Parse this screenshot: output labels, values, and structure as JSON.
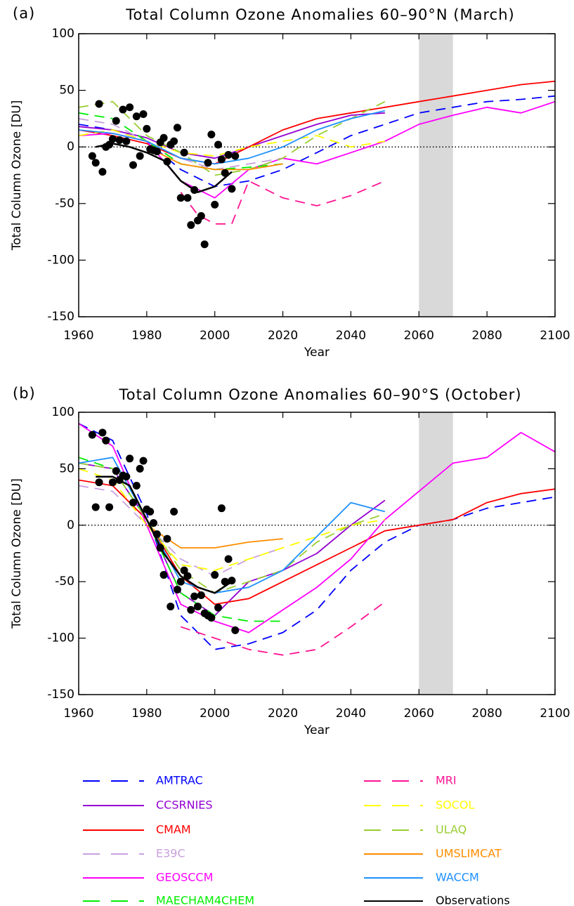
{
  "chart_data": [
    {
      "type": "line",
      "panel_label": "(a)",
      "title": "Total Column Ozone Anomalies 60–90°N (March)",
      "xlabel": "Year",
      "ylabel": "Total Column Ozone [DU]",
      "xlim": [
        1960,
        2100
      ],
      "ylim": [
        -150,
        100
      ],
      "xticks": [
        1960,
        1980,
        2000,
        2020,
        2040,
        2060,
        2080,
        2100
      ],
      "yticks": [
        -150,
        -100,
        -50,
        0,
        50,
        100
      ],
      "shade": [
        2060,
        2070
      ],
      "reference_line": 0,
      "series": [
        {
          "name": "AMTRAC",
          "x": [
            1960,
            1970,
            1980,
            1990,
            2000,
            2010,
            2020,
            2030,
            2040,
            2050,
            2060,
            2070,
            2080,
            2090,
            2100
          ],
          "values": [
            20,
            15,
            5,
            -20,
            -35,
            -30,
            -20,
            -5,
            10,
            20,
            30,
            35,
            40,
            42,
            45
          ]
        },
        {
          "name": "CCSRNIES",
          "x": [
            1960,
            1970,
            1980,
            1990,
            2000,
            2010,
            2020,
            2030,
            2040,
            2050
          ],
          "values": [
            18,
            15,
            8,
            -5,
            -10,
            0,
            10,
            20,
            28,
            30
          ]
        },
        {
          "name": "CMAM",
          "x": [
            1960,
            1970,
            1980,
            1990,
            2000,
            2010,
            2020,
            2030,
            2040,
            2050,
            2060,
            2070,
            2080,
            2090,
            2100
          ],
          "values": [
            15,
            10,
            3,
            -10,
            -15,
            0,
            15,
            25,
            30,
            35,
            40,
            45,
            50,
            55,
            58
          ]
        },
        {
          "name": "E39C",
          "x": [
            1960,
            1970,
            1980,
            1990,
            2000,
            2010,
            2020
          ],
          "values": [
            25,
            20,
            5,
            -10,
            -20,
            -15,
            -10
          ]
        },
        {
          "name": "GEOSCCM",
          "x": [
            1960,
            1970,
            1980,
            1990,
            2000,
            2010,
            2020,
            2030,
            2040,
            2050,
            2060,
            2070,
            2080,
            2090,
            2100
          ],
          "values": [
            10,
            12,
            5,
            -30,
            -45,
            -20,
            -10,
            -15,
            -5,
            5,
            20,
            28,
            35,
            30,
            40
          ]
        },
        {
          "name": "MAECHAM4CHEM",
          "x": [
            1960,
            1970,
            1980,
            1990,
            2000,
            2010,
            2020
          ],
          "values": [
            30,
            25,
            5,
            -15,
            -20,
            -18,
            -15
          ]
        },
        {
          "name": "MRI",
          "x": [
            1990,
            1995,
            2000,
            2005,
            2010,
            2020,
            2030,
            2040,
            2050
          ],
          "values": [
            -40,
            -60,
            -68,
            -68,
            -30,
            -45,
            -52,
            -43,
            -30
          ]
        },
        {
          "name": "SOCOL",
          "x": [
            1960,
            1970,
            1980,
            1990,
            2000,
            2010,
            2020,
            2030,
            2040,
            2050
          ],
          "values": [
            10,
            15,
            5,
            -5,
            -8,
            0,
            5,
            10,
            0,
            5
          ]
        },
        {
          "name": "ULAQ",
          "x": [
            1960,
            1970,
            1980,
            1990,
            2000,
            2010,
            2020,
            2030,
            2040,
            2050
          ],
          "values": [
            35,
            40,
            10,
            -5,
            -25,
            -20,
            -10,
            10,
            25,
            40
          ]
        },
        {
          "name": "UMSLIMCAT",
          "x": [
            1980,
            1990,
            2000,
            2010,
            2020
          ],
          "values": [
            0,
            -15,
            -20,
            -20,
            -15
          ]
        },
        {
          "name": "WACCM",
          "x": [
            1960,
            1970,
            1980,
            1990,
            2000,
            2010,
            2020,
            2030,
            2040,
            2050
          ],
          "values": [
            15,
            12,
            5,
            -10,
            -15,
            -10,
            0,
            15,
            25,
            32
          ]
        },
        {
          "name": "Observations",
          "x": [
            1965,
            1970,
            1975,
            1980,
            1985,
            1990,
            1995,
            2000,
            2005
          ],
          "values": [
            0,
            3,
            0,
            -5,
            -12,
            -30,
            -40,
            -35,
            -22
          ]
        }
      ],
      "observations": {
        "x": [
          1964,
          1965,
          1966,
          1967,
          1968,
          1969,
          1970,
          1971,
          1972,
          1973,
          1974,
          1975,
          1976,
          1977,
          1978,
          1979,
          1980,
          1981,
          1982,
          1983,
          1984,
          1985,
          1986,
          1987,
          1988,
          1989,
          1990,
          1991,
          1992,
          1993,
          1994,
          1995,
          1996,
          1997,
          1998,
          1999,
          2000,
          2001,
          2002,
          2003,
          2004,
          2005,
          2006
        ],
        "values": [
          -8,
          -14,
          38,
          -22,
          0,
          2,
          7,
          23,
          6,
          33,
          5,
          35,
          -16,
          27,
          -8,
          29,
          16,
          -2,
          -3,
          -4,
          4,
          8,
          -13,
          2,
          5,
          17,
          -45,
          -5,
          -45,
          -69,
          -38,
          -65,
          -61,
          -86,
          -14,
          11,
          -51,
          2,
          -11,
          -23,
          -7,
          -37,
          -8
        ]
      }
    },
    {
      "type": "line",
      "panel_label": "(b)",
      "title": "Total Column Ozone Anomalies 60–90°S (October)",
      "xlabel": "Year",
      "ylabel": "Total Column Ozone [DU]",
      "xlim": [
        1960,
        2100
      ],
      "ylim": [
        -150,
        100
      ],
      "xticks": [
        1960,
        1980,
        2000,
        2020,
        2040,
        2060,
        2080,
        2100
      ],
      "yticks": [
        -150,
        -100,
        -50,
        0,
        50,
        100
      ],
      "shade": [
        2060,
        2070
      ],
      "reference_line": 0,
      "series": [
        {
          "name": "AMTRAC",
          "x": [
            1960,
            1970,
            1980,
            1990,
            2000,
            2010,
            2020,
            2030,
            2040,
            2050,
            2060,
            2070,
            2080,
            2090,
            2100
          ],
          "values": [
            90,
            75,
            10,
            -80,
            -110,
            -105,
            -95,
            -75,
            -40,
            -15,
            0,
            5,
            15,
            20,
            25
          ]
        },
        {
          "name": "CCSRNIES",
          "x": [
            1960,
            1970,
            1980,
            1990,
            2000,
            2010,
            2020,
            2030,
            2040,
            2050
          ],
          "values": [
            55,
            50,
            5,
            -60,
            -80,
            -50,
            -40,
            -25,
            0,
            22
          ]
        },
        {
          "name": "CMAM",
          "x": [
            1960,
            1970,
            1980,
            1990,
            2000,
            2010,
            2020,
            2030,
            2040,
            2050,
            2060,
            2070,
            2080,
            2090,
            2100
          ],
          "values": [
            40,
            35,
            5,
            -45,
            -70,
            -65,
            -50,
            -35,
            -20,
            -5,
            0,
            5,
            20,
            28,
            32
          ]
        },
        {
          "name": "E39C",
          "x": [
            1960,
            1970,
            1980,
            1990,
            2000,
            2010,
            2020
          ],
          "values": [
            35,
            30,
            0,
            -30,
            -45,
            -30,
            -20
          ]
        },
        {
          "name": "GEOSCCM",
          "x": [
            1960,
            1970,
            1980,
            1990,
            2000,
            2010,
            2020,
            2030,
            2040,
            2050,
            2060,
            2070,
            2080,
            2090,
            2100
          ],
          "values": [
            90,
            70,
            0,
            -70,
            -85,
            -95,
            -75,
            -55,
            -30,
            5,
            30,
            55,
            60,
            82,
            65
          ]
        },
        {
          "name": "MAECHAM4CHEM",
          "x": [
            1960,
            1970,
            1980,
            1990,
            2000,
            2010,
            2020
          ],
          "values": [
            60,
            50,
            5,
            -60,
            -80,
            -85,
            -85
          ]
        },
        {
          "name": "MRI",
          "x": [
            1990,
            2000,
            2010,
            2020,
            2030,
            2040,
            2050
          ],
          "values": [
            -90,
            -100,
            -110,
            -115,
            -110,
            -90,
            -68
          ]
        },
        {
          "name": "SOCOL",
          "x": [
            1960,
            1970,
            1980,
            1990,
            2000,
            2010,
            2020,
            2030,
            2040,
            2050
          ],
          "values": [
            50,
            40,
            0,
            -35,
            -40,
            -30,
            -20,
            -10,
            0,
            5
          ]
        },
        {
          "name": "ULAQ",
          "x": [
            1960,
            1970,
            1980,
            1990,
            2000,
            2010,
            2020,
            2030,
            2040,
            2050
          ],
          "values": [
            55,
            50,
            5,
            -40,
            -60,
            -50,
            -40,
            -15,
            0,
            10
          ]
        },
        {
          "name": "UMSLIMCAT",
          "x": [
            1980,
            1990,
            2000,
            2010,
            2020
          ],
          "values": [
            0,
            -20,
            -20,
            -15,
            -12
          ]
        },
        {
          "name": "WACCM",
          "x": [
            1960,
            1970,
            1980,
            1990,
            2000,
            2010,
            2020,
            2030,
            2040,
            2050
          ],
          "values": [
            55,
            60,
            5,
            -50,
            -60,
            -55,
            -40,
            -10,
            20,
            12
          ]
        },
        {
          "name": "Observations",
          "x": [
            1965,
            1970,
            1975,
            1980,
            1985,
            1990,
            1995,
            2000,
            2005
          ],
          "values": [
            43,
            43,
            35,
            5,
            -25,
            -45,
            -55,
            -60,
            -50
          ]
        }
      ],
      "observations": {
        "x": [
          1964,
          1965,
          1966,
          1967,
          1968,
          1969,
          1970,
          1971,
          1972,
          1973,
          1974,
          1975,
          1976,
          1977,
          1978,
          1979,
          1980,
          1981,
          1982,
          1983,
          1984,
          1985,
          1986,
          1987,
          1988,
          1989,
          1990,
          1991,
          1992,
          1993,
          1994,
          1995,
          1996,
          1997,
          1998,
          1999,
          2000,
          2001,
          2002,
          2003,
          2004,
          2005,
          2006
        ],
        "values": [
          80,
          16,
          38,
          82,
          75,
          16,
          38,
          48,
          40,
          44,
          43,
          59,
          20,
          35,
          50,
          57,
          14,
          12,
          2,
          -8,
          -20,
          -44,
          -12,
          -72,
          12,
          -57,
          -50,
          -40,
          -45,
          -75,
          -63,
          -72,
          -62,
          -78,
          -80,
          -82,
          -44,
          -73,
          15,
          -50,
          -30,
          -49,
          -93
        ]
      }
    }
  ],
  "legend": {
    "entries": [
      {
        "name": "AMTRAC",
        "color": "#0000ff",
        "dashed": true
      },
      {
        "name": "CCSRNIES",
        "color": "#9400d3",
        "dashed": false
      },
      {
        "name": "CMAM",
        "color": "#ff0000",
        "dashed": false
      },
      {
        "name": "E39C",
        "color": "#c8a0dc",
        "dashed": true
      },
      {
        "name": "GEOSCCM",
        "color": "#ff00ff",
        "dashed": false
      },
      {
        "name": "MAECHAM4CHEM",
        "color": "#00ee00",
        "dashed": true
      },
      {
        "name": "MRI",
        "color": "#ff1493",
        "dashed": true
      },
      {
        "name": "SOCOL",
        "color": "#ffff00",
        "dashed": true
      },
      {
        "name": "ULAQ",
        "color": "#9acd32",
        "dashed": true
      },
      {
        "name": "UMSLIMCAT",
        "color": "#ff8c00",
        "dashed": false
      },
      {
        "name": "WACCM",
        "color": "#1e90ff",
        "dashed": false
      },
      {
        "name": "Observations",
        "color": "#000000",
        "dashed": false
      }
    ]
  }
}
